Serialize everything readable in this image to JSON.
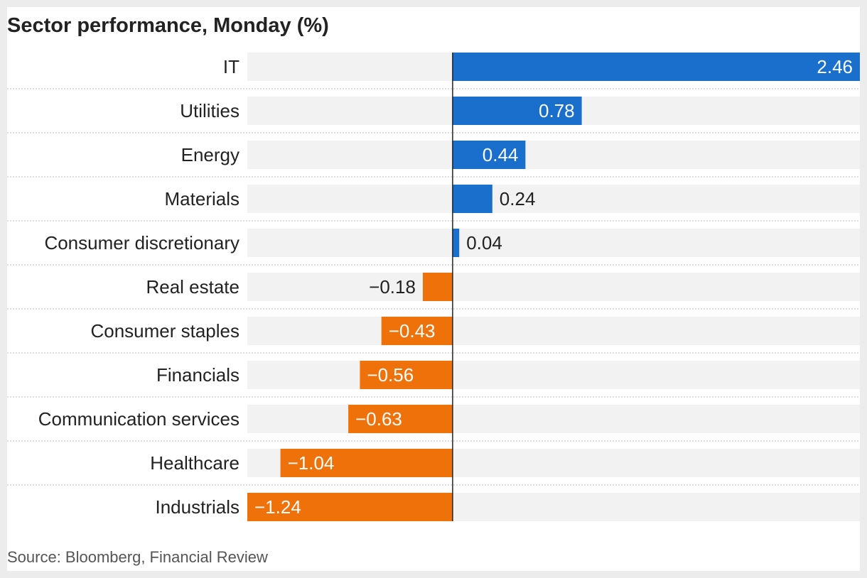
{
  "chart_data": {
    "type": "bar",
    "orientation": "horizontal",
    "title": "Sector performance, Monday (%)",
    "categories": [
      "IT",
      "Utilities",
      "Energy",
      "Materials",
      "Consumer discretionary",
      "Real estate",
      "Consumer staples",
      "Financials",
      "Communication services",
      "Healthcare",
      "Industrials"
    ],
    "values": [
      2.46,
      0.78,
      0.44,
      0.24,
      0.04,
      -0.18,
      -0.43,
      -0.56,
      -0.63,
      -1.04,
      -1.24
    ],
    "labels": [
      "2.46",
      "0.78",
      "0.44",
      "0.24",
      "0.04",
      "−0.18",
      "−0.43",
      "−0.56",
      "−0.63",
      "−1.04",
      "−1.24"
    ],
    "xlim": [
      -1.24,
      2.46
    ],
    "colors": {
      "positive": "#1a6fcc",
      "negative": "#ee7209",
      "track": "#f2f2f2"
    },
    "grid": false,
    "legend": "none"
  },
  "source": "Source: Bloomberg, Financial Review"
}
